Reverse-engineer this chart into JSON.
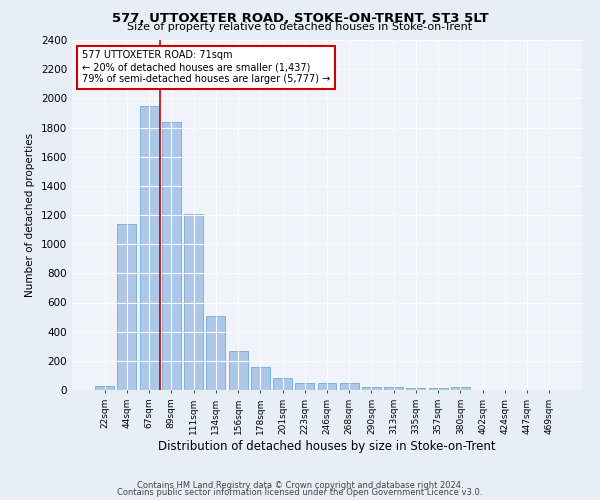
{
  "title": "577, UTTOXETER ROAD, STOKE-ON-TRENT, ST3 5LT",
  "subtitle": "Size of property relative to detached houses in Stoke-on-Trent",
  "xlabel": "Distribution of detached houses by size in Stoke-on-Trent",
  "ylabel": "Number of detached properties",
  "categories": [
    "22sqm",
    "44sqm",
    "67sqm",
    "89sqm",
    "111sqm",
    "134sqm",
    "156sqm",
    "178sqm",
    "201sqm",
    "223sqm",
    "246sqm",
    "268sqm",
    "290sqm",
    "313sqm",
    "335sqm",
    "357sqm",
    "380sqm",
    "402sqm",
    "424sqm",
    "447sqm",
    "469sqm"
  ],
  "values": [
    30,
    1140,
    1950,
    1840,
    1210,
    510,
    265,
    155,
    80,
    50,
    45,
    45,
    20,
    20,
    15,
    15,
    20,
    0,
    0,
    0,
    0
  ],
  "bar_color": "#aec6e8",
  "bar_edge_color": "#6baed6",
  "vline_x": 2.5,
  "vline_color": "#cc0000",
  "annotation_text": "577 UTTOXETER ROAD: 71sqm\n← 20% of detached houses are smaller (1,437)\n79% of semi-detached houses are larger (5,777) →",
  "annotation_box_color": "#ffffff",
  "annotation_box_edge": "#cc0000",
  "ylim": [
    0,
    2400
  ],
  "yticks": [
    0,
    200,
    400,
    600,
    800,
    1000,
    1200,
    1400,
    1600,
    1800,
    2000,
    2200,
    2400
  ],
  "footer1": "Contains HM Land Registry data © Crown copyright and database right 2024.",
  "footer2": "Contains public sector information licensed under the Open Government Licence v3.0.",
  "bg_color": "#e8eef5",
  "plot_bg_color": "#f0f4fa"
}
